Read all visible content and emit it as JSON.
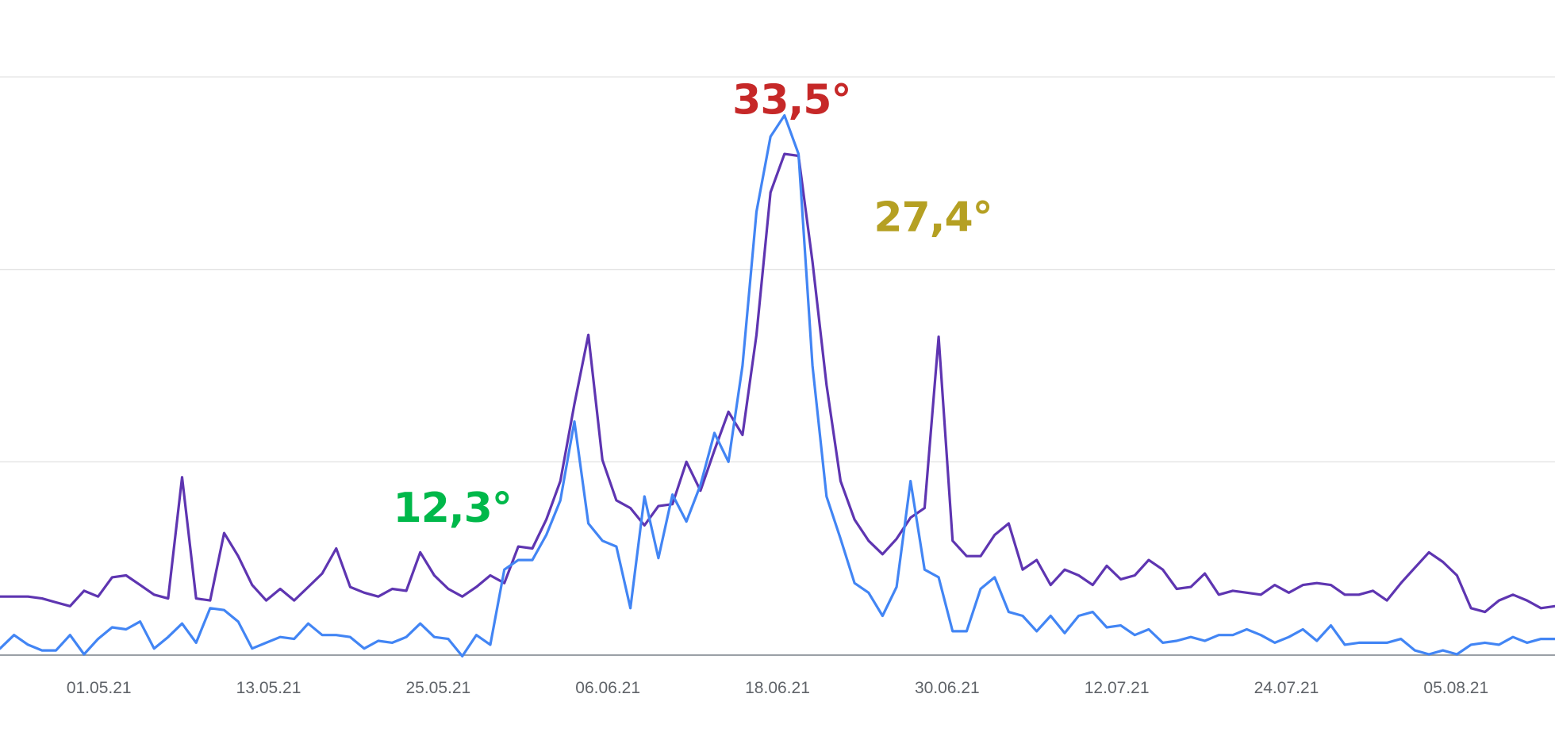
{
  "chart_data": {
    "type": "line",
    "title": "",
    "xlabel": "",
    "ylabel": "",
    "x_start": "2021-04-24",
    "x_end": "2021-08-12",
    "x_ticks": [
      {
        "date": "2021-05-01",
        "label": "01.05.21"
      },
      {
        "date": "2021-05-13",
        "label": "13.05.21"
      },
      {
        "date": "2021-05-25",
        "label": "25.05.21"
      },
      {
        "date": "2021-06-06",
        "label": "06.06.21"
      },
      {
        "date": "2021-06-18",
        "label": "18.06.21"
      },
      {
        "date": "2021-06-30",
        "label": "30.06.21"
      },
      {
        "date": "2021-07-12",
        "label": "12.07.21"
      },
      {
        "date": "2021-07-24",
        "label": "24.07.21"
      },
      {
        "date": "2021-08-05",
        "label": "05.08.21"
      }
    ],
    "ylim": [
      6,
      36
    ],
    "y_gridlines": [
      16,
      26,
      36
    ],
    "grid": true,
    "legend": "none",
    "series": [
      {
        "color": "#5e35b1",
        "values": [
          9.0,
          9.0,
          9.0,
          8.9,
          8.7,
          8.5,
          9.3,
          9.0,
          10.0,
          10.1,
          9.6,
          9.1,
          8.9,
          15.2,
          8.9,
          8.8,
          12.3,
          11.1,
          9.6,
          8.8,
          9.4,
          8.8,
          9.5,
          10.2,
          11.5,
          9.5,
          9.2,
          9.0,
          9.4,
          9.3,
          11.3,
          10.1,
          9.4,
          9.0,
          9.5,
          10.1,
          9.7,
          11.6,
          11.5,
          13.0,
          15.0,
          19.0,
          22.6,
          16.1,
          14.0,
          13.6,
          12.7,
          13.7,
          13.8,
          16.0,
          14.5,
          16.6,
          18.6,
          17.4,
          22.6,
          30.0,
          32.0,
          31.9,
          26.4,
          20.0,
          15.0,
          13.0,
          11.9,
          11.2,
          12.0,
          13.1,
          13.6,
          22.5,
          11.9,
          11.1,
          11.1,
          12.2,
          12.8,
          10.4,
          10.9,
          9.6,
          10.4,
          10.1,
          9.6,
          10.6,
          9.9,
          10.1,
          10.9,
          10.4,
          9.4,
          9.5,
          10.2,
          9.1,
          9.3,
          9.2,
          9.1,
          9.6,
          9.2,
          9.6,
          9.7,
          9.6,
          9.1,
          9.1,
          9.3,
          8.8,
          9.7,
          10.5,
          11.3,
          10.8,
          10.1,
          8.4,
          8.2,
          8.8,
          9.1,
          8.8,
          8.4,
          8.5
        ]
      },
      {
        "color": "#4285f4",
        "values": [
          6.3,
          7.0,
          6.5,
          6.2,
          6.2,
          7.0,
          6.0,
          6.8,
          7.4,
          7.3,
          7.7,
          6.3,
          6.9,
          7.6,
          6.6,
          8.4,
          8.3,
          7.7,
          6.3,
          6.6,
          6.9,
          6.8,
          7.6,
          7.0,
          7.0,
          6.9,
          6.3,
          6.7,
          6.6,
          6.9,
          7.6,
          6.9,
          6.8,
          5.9,
          7.0,
          6.5,
          10.4,
          10.9,
          10.9,
          12.2,
          14.0,
          18.1,
          12.8,
          11.9,
          11.6,
          8.4,
          14.2,
          11.0,
          14.3,
          12.9,
          14.8,
          17.5,
          16.0,
          21.0,
          29.0,
          32.9,
          34.0,
          32.0,
          21.0,
          14.2,
          12.0,
          9.7,
          9.2,
          8.0,
          9.5,
          15.0,
          10.4,
          10.0,
          7.2,
          7.2,
          9.4,
          10.0,
          8.2,
          8.0,
          7.2,
          8.0,
          7.1,
          8.0,
          8.2,
          7.4,
          7.5,
          7.0,
          7.3,
          6.6,
          6.7,
          6.9,
          6.7,
          7.0,
          7.0,
          7.3,
          7.0,
          6.6,
          6.9,
          7.3,
          6.7,
          7.5,
          6.5,
          6.6,
          6.6,
          6.6,
          6.8,
          6.2,
          6.0,
          6.2,
          6.0,
          6.5,
          6.6,
          6.5,
          6.9,
          6.6,
          6.8,
          6.8
        ]
      }
    ],
    "annotations": [
      {
        "text": "33,5°",
        "color": "#c62828",
        "date": "2021-06-19",
        "value": 33.5
      },
      {
        "text": "27,4°",
        "color": "#b5a023",
        "date": "2021-06-29",
        "value": 27.4
      },
      {
        "text": "12,3°",
        "color": "#00b84a",
        "date": "2021-05-26",
        "value": 12.3
      }
    ]
  }
}
